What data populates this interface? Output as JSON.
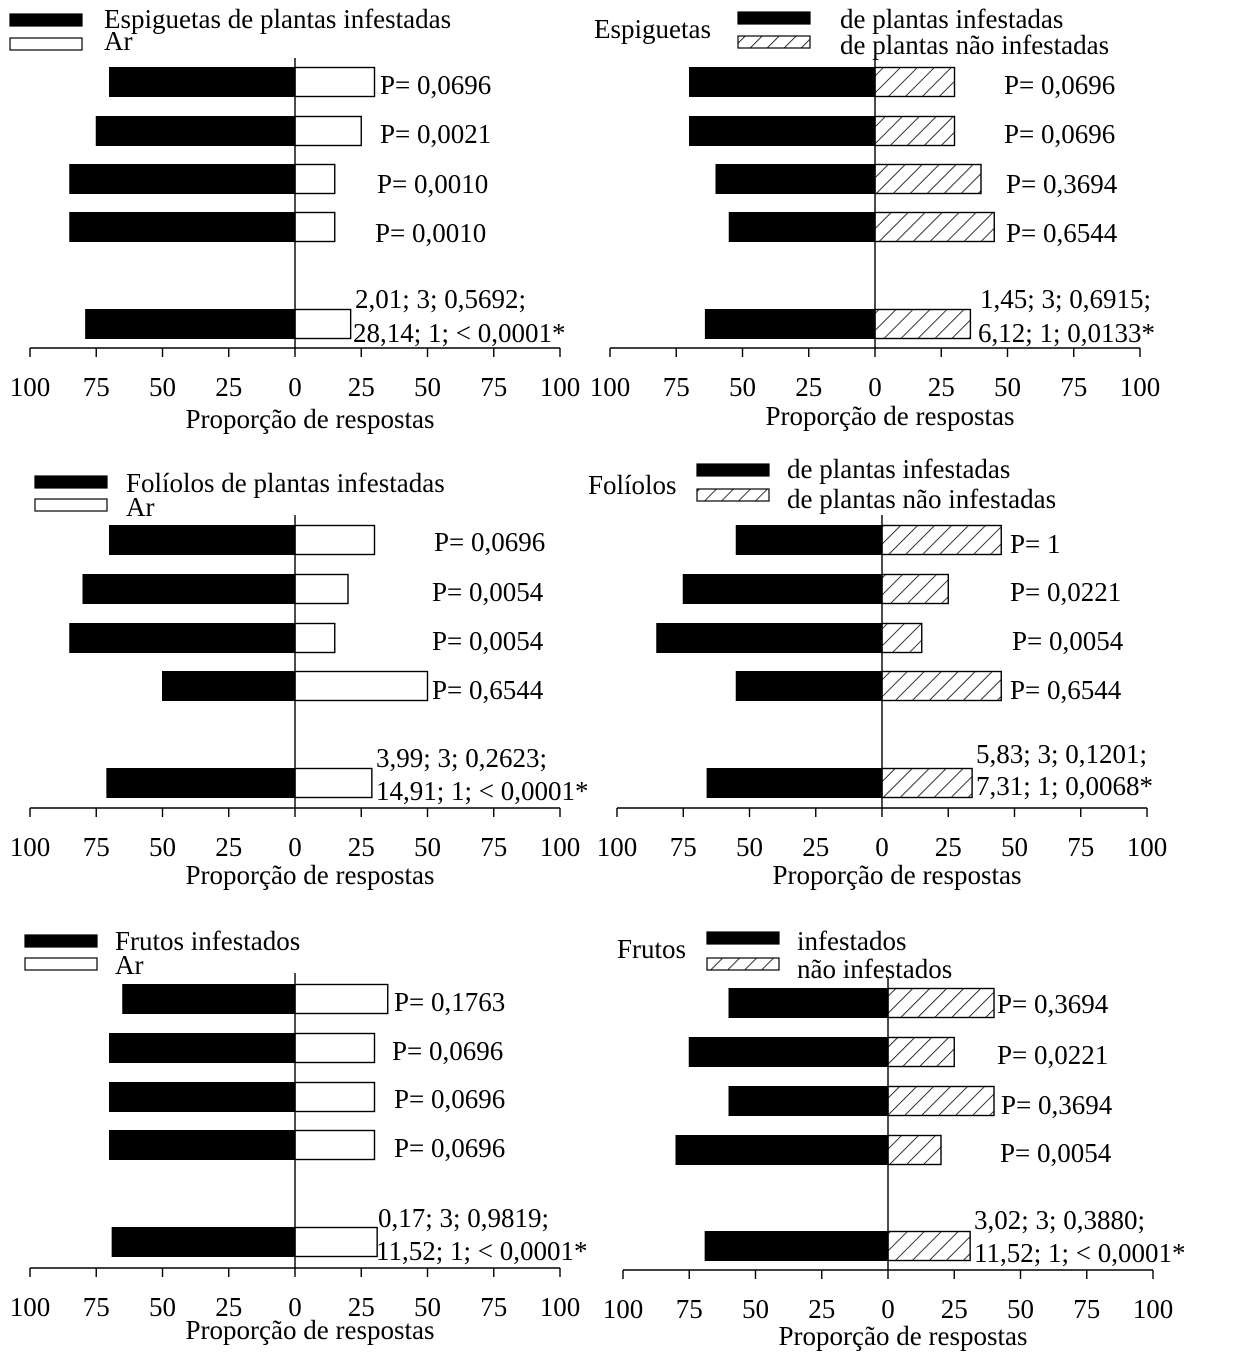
{
  "chart_data": [
    {
      "type": "bar",
      "orientation": "horizontal-diverging",
      "legend_title": "",
      "series": [
        {
          "name": "Espiguetas de plantas infestadas",
          "fill": "black",
          "values": [
            -70,
            -75,
            -85,
            -85,
            -79
          ]
        },
        {
          "name": "Ar",
          "fill": "white",
          "values": [
            30,
            25,
            15,
            15,
            21
          ]
        }
      ],
      "p_labels": [
        "P= 0,0696",
        "P= 0,0021",
        "P= 0,0010",
        "P= 0,0010"
      ],
      "stats": [
        "2,01; 3; 0,5692;",
        "28,14; 1; < 0,0001*"
      ],
      "xticks": [
        "100",
        "75",
        "50",
        "25",
        "0",
        "25",
        "50",
        "75",
        "100"
      ],
      "xlim": [
        -100,
        100
      ],
      "xlabel": "Proporção de respostas"
    },
    {
      "type": "bar",
      "orientation": "horizontal-diverging",
      "legend_title": "Espiguetas",
      "series": [
        {
          "name": "de plantas infestadas",
          "fill": "black",
          "values": [
            -70,
            -70,
            -60,
            -55,
            -64
          ]
        },
        {
          "name": "de plantas não infestadas",
          "fill": "hatch",
          "values": [
            30,
            30,
            40,
            45,
            36
          ]
        }
      ],
      "p_labels": [
        "P= 0,0696",
        "P= 0,0696",
        "P= 0,3694",
        "P= 0,6544"
      ],
      "stats": [
        "1,45; 3; 0,6915;",
        "6,12; 1; 0,0133*"
      ],
      "xticks": [
        "100",
        "75",
        "50",
        "25",
        "0",
        "25",
        "50",
        "75",
        "100"
      ],
      "xlim": [
        -100,
        100
      ],
      "xlabel": "Proporção de respostas"
    },
    {
      "type": "bar",
      "orientation": "horizontal-diverging",
      "legend_title": "",
      "series": [
        {
          "name": "Folíolos de plantas infestadas",
          "fill": "black",
          "values": [
            -70,
            -80,
            -85,
            -50,
            -71
          ]
        },
        {
          "name": "Ar",
          "fill": "white",
          "values": [
            30,
            20,
            15,
            50,
            29
          ]
        }
      ],
      "p_labels": [
        "P= 0,0696",
        "P= 0,0054",
        "P= 0,0054",
        "P= 0,6544"
      ],
      "stats": [
        "3,99; 3; 0,2623;",
        "14,91; 1; < 0,0001*"
      ],
      "xticks": [
        "100",
        "75",
        "50",
        "25",
        "0",
        "25",
        "50",
        "75",
        "100"
      ],
      "xlim": [
        -100,
        100
      ],
      "xlabel": "Proporção de respostas"
    },
    {
      "type": "bar",
      "orientation": "horizontal-diverging",
      "legend_title": "Folíolos",
      "series": [
        {
          "name": "de plantas infestadas",
          "fill": "black",
          "values": [
            -55,
            -75,
            -85,
            -55,
            -66
          ]
        },
        {
          "name": "de plantas não infestadas",
          "fill": "hatch",
          "values": [
            45,
            25,
            15,
            45,
            34
          ]
        }
      ],
      "p_labels": [
        "P= 1",
        "P= 0,0221",
        "P= 0,0054",
        "P= 0,6544"
      ],
      "stats": [
        "5,83; 3; 0,1201;",
        "7,31; 1; 0,0068*"
      ],
      "xticks": [
        "100",
        "75",
        "50",
        "25",
        "0",
        "25",
        "50",
        "75",
        "100"
      ],
      "xlim": [
        -100,
        100
      ],
      "xlabel": "Proporção de respostas"
    },
    {
      "type": "bar",
      "orientation": "horizontal-diverging",
      "legend_title": "",
      "series": [
        {
          "name": "Frutos infestados",
          "fill": "black",
          "values": [
            -65,
            -70,
            -70,
            -70,
            -69
          ]
        },
        {
          "name": "Ar",
          "fill": "white",
          "values": [
            35,
            30,
            30,
            30,
            31
          ]
        }
      ],
      "p_labels": [
        "P= 0,1763",
        "P= 0,0696",
        "P= 0,0696",
        "P= 0,0696"
      ],
      "stats": [
        "0,17; 3; 0,9819;",
        "11,52; 1; < 0,0001*"
      ],
      "xticks": [
        "100",
        "75",
        "50",
        "25",
        "0",
        "25",
        "50",
        "75",
        "100"
      ],
      "xlim": [
        -100,
        100
      ],
      "xlabel": "Proporção de respostas"
    },
    {
      "type": "bar",
      "orientation": "horizontal-diverging",
      "legend_title": "Frutos",
      "series": [
        {
          "name": "infestados",
          "fill": "black",
          "values": [
            -60,
            -75,
            -60,
            -80,
            -69
          ]
        },
        {
          "name": "não infestados",
          "fill": "hatch",
          "values": [
            40,
            25,
            40,
            20,
            31
          ]
        }
      ],
      "p_labels": [
        "P= 0,3694",
        "P= 0,0221",
        "P= 0,3694",
        "P= 0,0054"
      ],
      "stats": [
        "3,02; 3; 0,3880;",
        "11,52; 1; < 0,0001*"
      ],
      "xticks": [
        "100",
        "75",
        "50",
        "25",
        "0",
        "25",
        "50",
        "75",
        "100"
      ],
      "xlim": [
        -100,
        100
      ],
      "xlabel": "Proporção de respostas"
    }
  ]
}
